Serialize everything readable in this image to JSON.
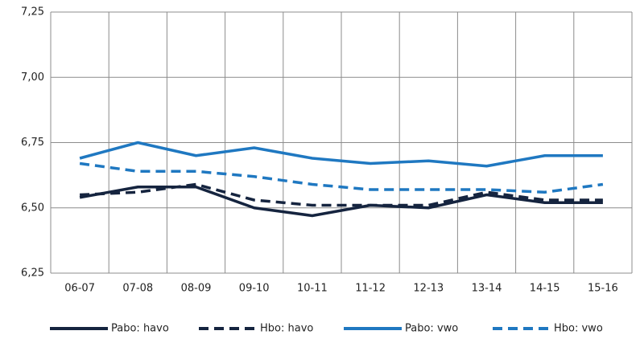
{
  "chart_data": {
    "type": "line",
    "categories": [
      "06-07",
      "07-08",
      "08-09",
      "09-10",
      "10-11",
      "11-12",
      "12-13",
      "13-14",
      "14-15",
      "15-16"
    ],
    "series": [
      {
        "name": "Pabo: havo",
        "color": "#15243f",
        "dashed": false,
        "values": [
          6.54,
          6.58,
          6.58,
          6.5,
          6.47,
          6.51,
          6.5,
          6.55,
          6.52,
          6.52
        ]
      },
      {
        "name": "Hbo: havo",
        "color": "#15243f",
        "dashed": true,
        "values": [
          6.55,
          6.56,
          6.59,
          6.53,
          6.51,
          6.51,
          6.51,
          6.56,
          6.53,
          6.53
        ]
      },
      {
        "name": "Pabo: vwo",
        "color": "#1f78c1",
        "dashed": false,
        "values": [
          6.69,
          6.75,
          6.7,
          6.73,
          6.69,
          6.67,
          6.68,
          6.66,
          6.7,
          6.7
        ]
      },
      {
        "name": "Hbo: vwo",
        "color": "#1f78c1",
        "dashed": true,
        "values": [
          6.67,
          6.64,
          6.64,
          6.62,
          6.59,
          6.57,
          6.57,
          6.57,
          6.56,
          6.59
        ]
      }
    ],
    "ylim": [
      6.25,
      7.25
    ],
    "yticks": [
      {
        "value": 6.25,
        "label": "6,25"
      },
      {
        "value": 6.5,
        "label": "6,50"
      },
      {
        "value": 6.75,
        "label": "6,75"
      },
      {
        "value": 7.0,
        "label": "7,00"
      },
      {
        "value": 7.25,
        "label": "7,25"
      }
    ],
    "grid": true,
    "legend": "bottom"
  }
}
